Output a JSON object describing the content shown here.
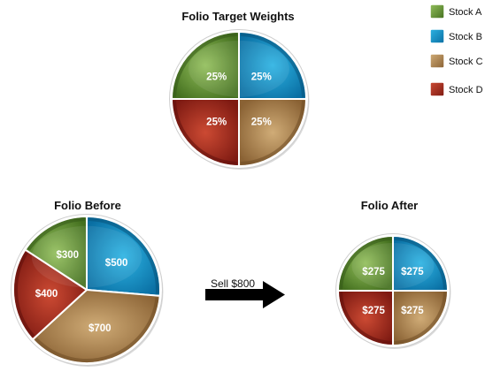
{
  "chart_data": [
    {
      "type": "pie",
      "title": "Folio Target Weights",
      "categories": [
        "Stock A",
        "Stock B",
        "Stock C",
        "Stock D"
      ],
      "values": [
        25,
        25,
        25,
        25
      ],
      "labels": [
        "25%",
        "25%",
        "25%",
        "25%"
      ],
      "unit": "%"
    },
    {
      "type": "pie",
      "title": "Folio Before",
      "categories": [
        "Stock A",
        "Stock B",
        "Stock C",
        "Stock D"
      ],
      "values": [
        300,
        500,
        700,
        400
      ],
      "labels": [
        "$300",
        "$500",
        "$700",
        "$400"
      ],
      "unit": "$"
    },
    {
      "type": "pie",
      "title": "Folio After",
      "categories": [
        "Stock A",
        "Stock B",
        "Stock C",
        "Stock D"
      ],
      "values": [
        275,
        275,
        275,
        275
      ],
      "labels": [
        "$275",
        "$275",
        "$275",
        "$275"
      ],
      "unit": "$"
    }
  ],
  "legend": {
    "placement": "top-right",
    "items": [
      {
        "label": "Stock A",
        "color": "#6f9b3c"
      },
      {
        "label": "Stock B",
        "color": "#1a8fc4"
      },
      {
        "label": "Stock C",
        "color": "#b58c55"
      },
      {
        "label": "Stock D",
        "color": "#a52a1e"
      }
    ]
  },
  "arrow": {
    "label": "Sell $800",
    "icon": "right-arrow-icon",
    "color": "#000000"
  },
  "colors": {
    "Stock A": {
      "light": "#93bf5c",
      "dark": "#44701f",
      "rim": "#355a17"
    },
    "Stock B": {
      "light": "#2db3e3",
      "dark": "#0a6fa3",
      "rim": "#08537c"
    },
    "Stock C": {
      "light": "#d0ac77",
      "dark": "#8a6234",
      "rim": "#6f4c24"
    },
    "Stock D": {
      "light": "#cc4a33",
      "dark": "#7e1a12",
      "rim": "#5e0f0b"
    }
  }
}
